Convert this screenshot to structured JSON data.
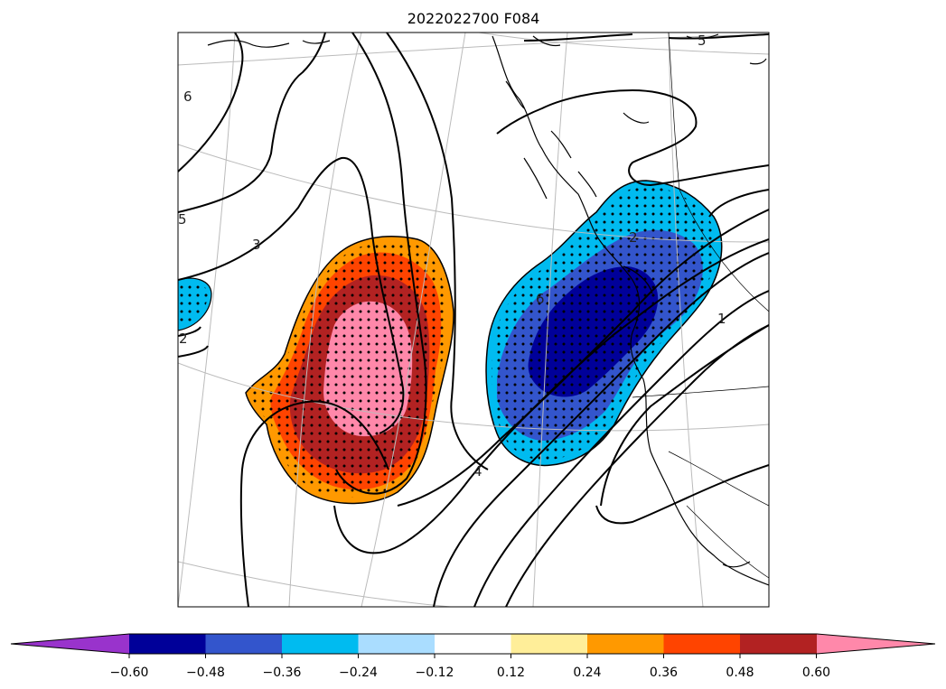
{
  "title": "2022022700 F084",
  "colorbar": {
    "extend_low_color": "#9933CC",
    "extend_high_color": "#FF88AA",
    "colors": [
      "#000099",
      "#3355CC",
      "#00BBF0",
      "#AADDFF",
      "#FFFFFF",
      "#FFEE99",
      "#FF9900",
      "#FF4400",
      "#B22222"
    ],
    "ticks": [
      "−0.60",
      "−0.48",
      "−0.36",
      "−0.24",
      "−0.12",
      "0.12",
      "0.24",
      "0.36",
      "0.48",
      "0.60"
    ]
  },
  "map": {
    "contour_labels": [
      "6",
      "5",
      "3",
      "2",
      "4",
      "1",
      "5",
      "6",
      "2"
    ],
    "colors": {
      "positive_levels": [
        "#FF9900",
        "#FF4400",
        "#B22222",
        "#FF88AA"
      ],
      "negative_levels": [
        "#00BBF0",
        "#3355CC",
        "#000099"
      ],
      "contour": "#000000",
      "graticule": "#BBBBBB",
      "coastline": "#000000"
    },
    "stippling": true
  }
}
